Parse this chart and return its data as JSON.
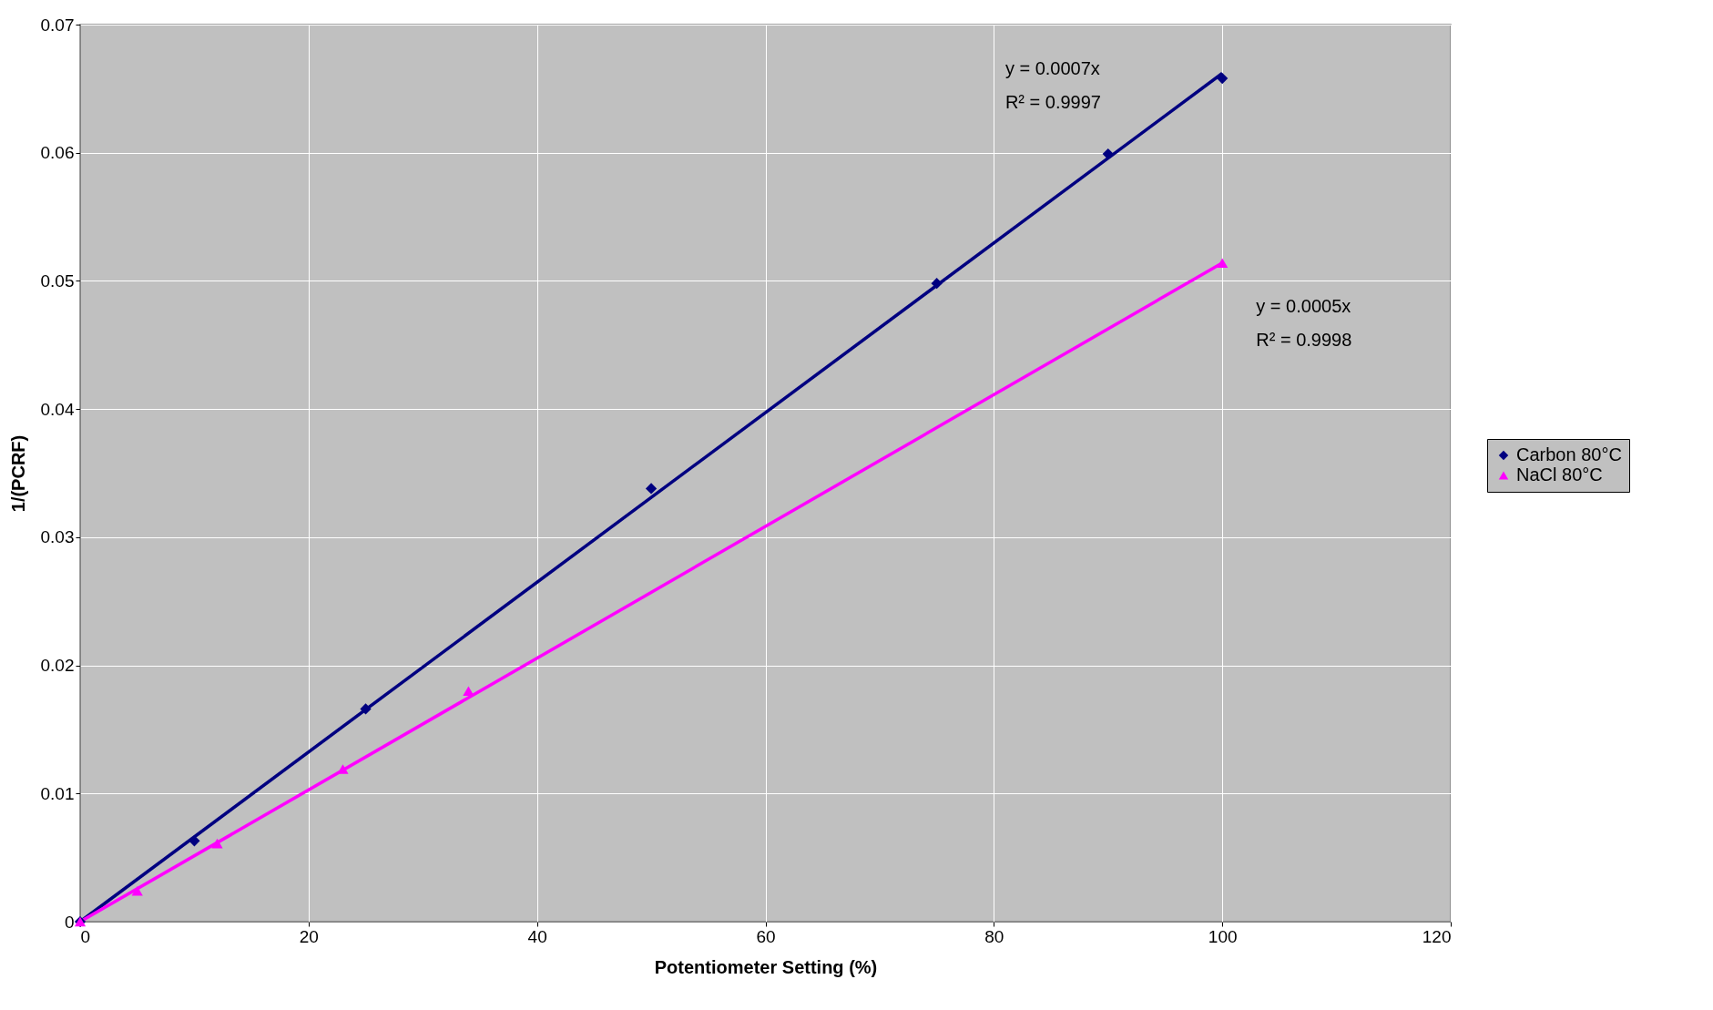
{
  "chart_data": {
    "type": "scatter",
    "xlabel": "Potentiometer Setting (%)",
    "ylabel": "1/(PCRF)",
    "xlim": [
      0,
      120
    ],
    "xticks": [
      0,
      20,
      40,
      60,
      80,
      100,
      120
    ],
    "ylim": [
      0,
      0.07
    ],
    "yticks": [
      0,
      0.01,
      0.02,
      0.03,
      0.04,
      0.05,
      0.06,
      0.07
    ],
    "grid": true,
    "legend": "right",
    "series": [
      {
        "name": "Carbon 80°C",
        "color": "#000080",
        "marker": "diamond",
        "x": [
          0,
          10,
          25,
          50,
          75,
          90,
          100
        ],
        "values": [
          0,
          0.0063,
          0.0166,
          0.0338,
          0.0498,
          0.0599,
          0.0658
        ]
      },
      {
        "name": "NaCl 80°C",
        "color": "#ff00ff",
        "marker": "triangle",
        "x": [
          0,
          5,
          12,
          23,
          34,
          100
        ],
        "values": [
          0,
          0.0024,
          0.0061,
          0.0119,
          0.018,
          0.0514
        ]
      },
      {
        "type": "line",
        "color": "#000080",
        "x": [
          0,
          100
        ],
        "values": [
          0,
          0.0662
        ]
      },
      {
        "type": "line",
        "color": "#ff00ff",
        "x": [
          0,
          100
        ],
        "values": [
          0,
          0.0514
        ]
      }
    ],
    "annotations": [
      "y = 0.0007x",
      "R² = 0.9997",
      "y = 0.0005x",
      "R² = 0.9998"
    ]
  }
}
